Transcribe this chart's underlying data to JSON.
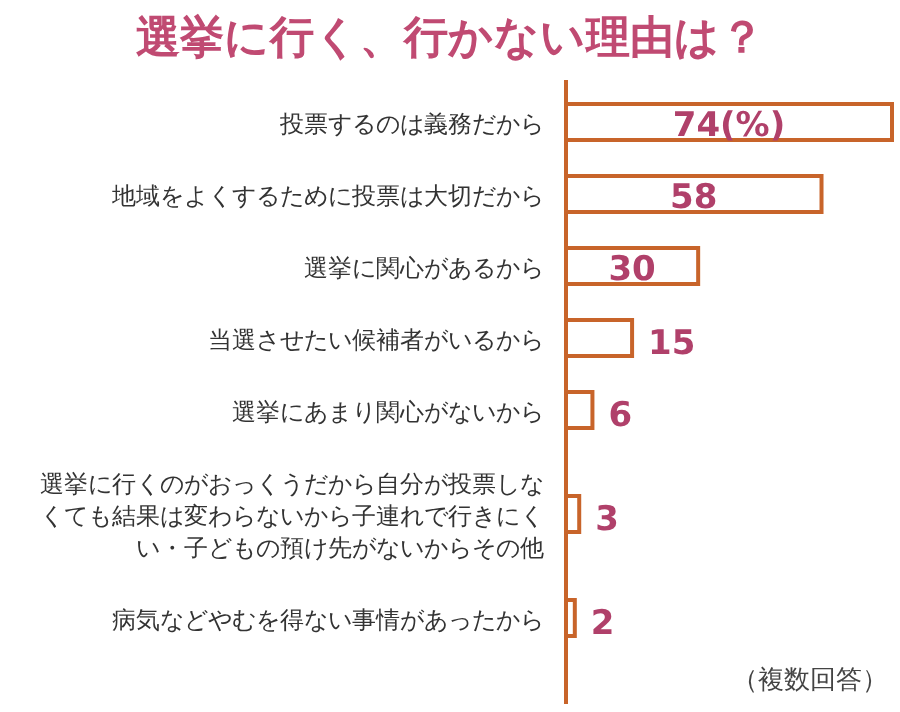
{
  "chart_data": {
    "type": "bar",
    "orientation": "horizontal",
    "title": "選挙に行く、行かない理由は？",
    "categories": [
      "投票するのは義務だから",
      "地域をよくするために投票は大切だから",
      "選挙に関心があるから",
      "当選させたい候補者がいるから",
      "選挙にあまり関心がないから",
      "選挙に行くのがおっくうだから自分が投票しなくても結果は変わらないから子連れで行きにくい・子どもの預け先がないからその他",
      "病気などやむを得ない事情があったから"
    ],
    "values": [
      74,
      58,
      30,
      15,
      6,
      3,
      2
    ],
    "value_labels": [
      "74(%)",
      "58",
      "30",
      "15",
      "6",
      "3",
      "2"
    ],
    "color": "#c8642a",
    "annotations": [
      "（複数回答）"
    ]
  }
}
